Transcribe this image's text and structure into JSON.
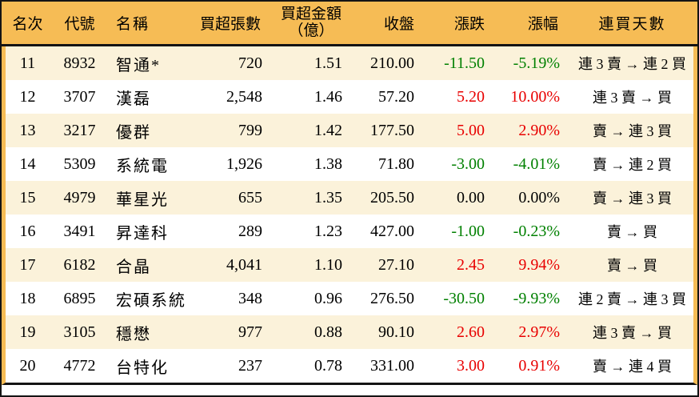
{
  "colors": {
    "header_bg": "#f6bc55",
    "stripe_bg": "#fbf2da",
    "up_red": "#e80000",
    "down_green": "#008000",
    "border_black": "#141414"
  },
  "table": {
    "columns": [
      {
        "key": "rank",
        "label": "名次"
      },
      {
        "key": "code",
        "label": "代號"
      },
      {
        "key": "name",
        "label": "名稱"
      },
      {
        "key": "volume",
        "label": "買超張數"
      },
      {
        "key": "amount",
        "label_line1": "買超金額",
        "label_line2": "（億）"
      },
      {
        "key": "close",
        "label": "收盤"
      },
      {
        "key": "change",
        "label": "漲跌"
      },
      {
        "key": "pct",
        "label": "漲幅"
      },
      {
        "key": "days",
        "label": "連買天數"
      }
    ],
    "rows": [
      {
        "rank": "11",
        "code": "8932",
        "name": "智通*",
        "volume": "720",
        "amount": "1.51",
        "close": "210.00",
        "change": "-11.50",
        "pct": "-5.19%",
        "days": "連 3 賣 → 連 2 買",
        "trend": "down"
      },
      {
        "rank": "12",
        "code": "3707",
        "name": "漢磊",
        "volume": "2,548",
        "amount": "1.46",
        "close": "57.20",
        "change": "5.20",
        "pct": "10.00%",
        "days": "連 3 賣 → 買",
        "trend": "up"
      },
      {
        "rank": "13",
        "code": "3217",
        "name": "優群",
        "volume": "799",
        "amount": "1.42",
        "close": "177.50",
        "change": "5.00",
        "pct": "2.90%",
        "days": "賣 → 連 3 買",
        "trend": "up"
      },
      {
        "rank": "14",
        "code": "5309",
        "name": "系統電",
        "volume": "1,926",
        "amount": "1.38",
        "close": "71.80",
        "change": "-3.00",
        "pct": "-4.01%",
        "days": "賣 → 連 2 買",
        "trend": "down"
      },
      {
        "rank": "15",
        "code": "4979",
        "name": "華星光",
        "volume": "655",
        "amount": "1.35",
        "close": "205.50",
        "change": "0.00",
        "pct": "0.00%",
        "days": "賣 → 連 3 買",
        "trend": "flat"
      },
      {
        "rank": "16",
        "code": "3491",
        "name": "昇達科",
        "volume": "289",
        "amount": "1.23",
        "close": "427.00",
        "change": "-1.00",
        "pct": "-0.23%",
        "days": "賣 → 買",
        "trend": "down"
      },
      {
        "rank": "17",
        "code": "6182",
        "name": "合晶",
        "volume": "4,041",
        "amount": "1.10",
        "close": "27.10",
        "change": "2.45",
        "pct": "9.94%",
        "days": "賣 → 買",
        "trend": "up"
      },
      {
        "rank": "18",
        "code": "6895",
        "name": "宏碩系統",
        "volume": "348",
        "amount": "0.96",
        "close": "276.50",
        "change": "-30.50",
        "pct": "-9.93%",
        "days": "連 2 賣 → 連 3 買",
        "trend": "down"
      },
      {
        "rank": "19",
        "code": "3105",
        "name": "穩懋",
        "volume": "977",
        "amount": "0.88",
        "close": "90.10",
        "change": "2.60",
        "pct": "2.97%",
        "days": "連 3 賣 → 買",
        "trend": "up"
      },
      {
        "rank": "20",
        "code": "4772",
        "name": "台特化",
        "volume": "237",
        "amount": "0.78",
        "close": "331.00",
        "change": "3.00",
        "pct": "0.91%",
        "days": "賣 → 連 4 買",
        "trend": "up"
      }
    ]
  },
  "chart_data": {
    "type": "table",
    "columns": [
      "名次",
      "代號",
      "名稱",
      "買超張數",
      "買超金額（億）",
      "收盤",
      "漲跌",
      "漲幅",
      "連買天數"
    ],
    "rows": [
      [
        "11",
        "8932",
        "智通*",
        "720",
        "1.51",
        "210.00",
        "-11.50",
        "-5.19%",
        "連 3 賣 → 連 2 買"
      ],
      [
        "12",
        "3707",
        "漢磊",
        "2,548",
        "1.46",
        "57.20",
        "5.20",
        "10.00%",
        "連 3 賣 → 買"
      ],
      [
        "13",
        "3217",
        "優群",
        "799",
        "1.42",
        "177.50",
        "5.00",
        "2.90%",
        "賣 → 連 3 買"
      ],
      [
        "14",
        "5309",
        "系統電",
        "1,926",
        "1.38",
        "71.80",
        "-3.00",
        "-4.01%",
        "賣 → 連 2 買"
      ],
      [
        "15",
        "4979",
        "華星光",
        "655",
        "1.35",
        "205.50",
        "0.00",
        "0.00%",
        "賣 → 連 3 買"
      ],
      [
        "16",
        "3491",
        "昇達科",
        "289",
        "1.23",
        "427.00",
        "-1.00",
        "-0.23%",
        "賣 → 買"
      ],
      [
        "17",
        "6182",
        "合晶",
        "4,041",
        "1.10",
        "27.10",
        "2.45",
        "9.94%",
        "賣 → 買"
      ],
      [
        "18",
        "6895",
        "宏碩系統",
        "348",
        "0.96",
        "276.50",
        "-30.50",
        "-9.93%",
        "連 2 賣 → 連 3 買"
      ],
      [
        "19",
        "3105",
        "穩懋",
        "977",
        "0.88",
        "90.10",
        "2.60",
        "2.97%",
        "連 3 賣 → 買"
      ],
      [
        "20",
        "4772",
        "台特化",
        "237",
        "0.78",
        "331.00",
        "3.00",
        "0.91%",
        "賣 → 連 4 買"
      ]
    ],
    "legend": "red = price up, green = price down, black = unchanged"
  }
}
